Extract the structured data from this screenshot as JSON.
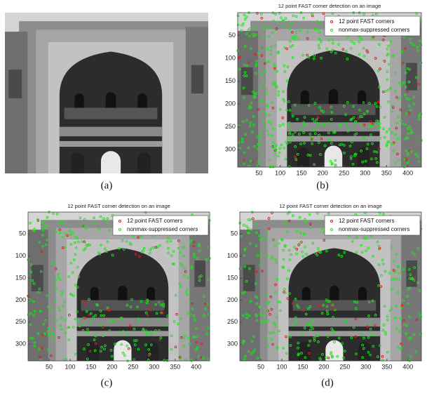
{
  "panels": [
    {
      "caption": "(a)"
    },
    {
      "title": "12 point FAST corner detection on an image",
      "legend": [
        {
          "name": "12 point FAST corners",
          "color": "#d62020"
        },
        {
          "name": "nonmax-suppressed corners",
          "color": "#22e022"
        }
      ],
      "xlim": [
        0,
        432
      ],
      "ylim": [
        0,
        338
      ],
      "y_reversed": true,
      "xticks": [
        50,
        100,
        150,
        200,
        250,
        300,
        350,
        400
      ],
      "yticks": [
        50,
        100,
        150,
        200,
        250,
        300
      ],
      "caption": "(b)"
    },
    {
      "title": "12 point FAST corner detection on an image",
      "legend": [
        {
          "name": "12 point FAST corners",
          "color": "#d62020"
        },
        {
          "name": "nonmax-suppressed corners",
          "color": "#22e022"
        }
      ],
      "xlim": [
        0,
        432
      ],
      "ylim": [
        0,
        338
      ],
      "y_reversed": true,
      "xticks": [
        50,
        100,
        150,
        200,
        250,
        300,
        350,
        400
      ],
      "yticks": [
        50,
        100,
        150,
        200,
        250,
        300
      ],
      "caption": "(c)"
    },
    {
      "title": "12 point FAST corner detection on an image",
      "legend": [
        {
          "name": "12 point FAST corners",
          "color": "#d62020"
        },
        {
          "name": "nonmax-suppressed corners",
          "color": "#22e022"
        }
      ],
      "xlim": [
        0,
        432
      ],
      "ylim": [
        0,
        338
      ],
      "y_reversed": true,
      "xticks": [
        50,
        100,
        150,
        200,
        250,
        300,
        350,
        400
      ],
      "yticks": [
        50,
        100,
        150,
        200,
        250,
        300
      ],
      "caption": "(d)"
    }
  ]
}
